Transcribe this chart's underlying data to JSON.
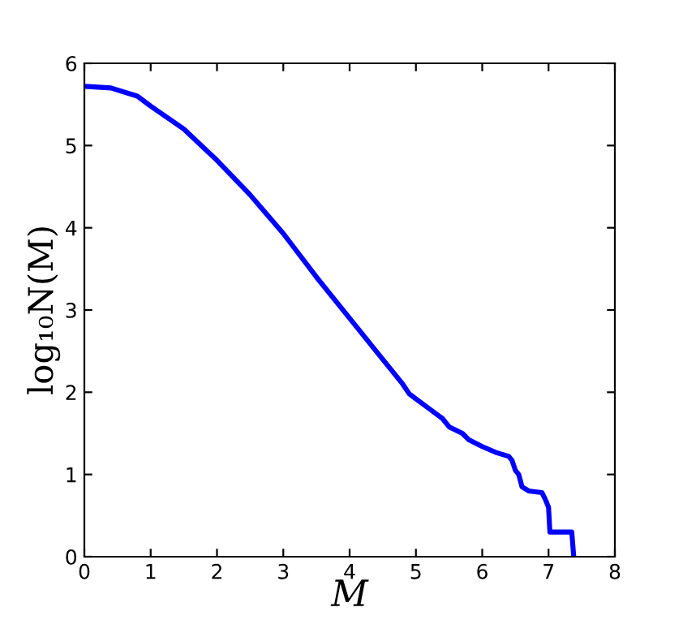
{
  "chart_data": {
    "type": "line",
    "xlabel": "M",
    "ylabel": "log₁₀N(M)",
    "xlim": [
      0,
      8
    ],
    "ylim": [
      0,
      6
    ],
    "xticks": [
      0,
      1,
      2,
      3,
      4,
      5,
      6,
      7,
      8
    ],
    "yticks": [
      0,
      1,
      2,
      3,
      4,
      5,
      6
    ],
    "grid": false,
    "legend": false,
    "marker": "none",
    "line_style": "solid",
    "series": [
      {
        "color": "#0000ff",
        "x": [
          0,
          0.4,
          0.8,
          1.0,
          1.5,
          2,
          2.5,
          3,
          3.5,
          4,
          4.5,
          4.8,
          4.9,
          5,
          5.2,
          5.4,
          5.5,
          5.7,
          5.8,
          6,
          6.2,
          6.4,
          6.45,
          6.5,
          6.55,
          6.6,
          6.7,
          6.9,
          6.95,
          7.0,
          7.02,
          7.35,
          7.38
        ],
        "values": [
          5.72,
          5.7,
          5.6,
          5.48,
          5.2,
          4.82,
          4.4,
          3.93,
          3.4,
          2.9,
          2.4,
          2.1,
          1.98,
          1.92,
          1.8,
          1.68,
          1.58,
          1.5,
          1.42,
          1.34,
          1.27,
          1.22,
          1.17,
          1.05,
          1.0,
          0.85,
          0.8,
          0.78,
          0.7,
          0.6,
          0.3,
          0.3,
          0
        ]
      }
    ]
  }
}
